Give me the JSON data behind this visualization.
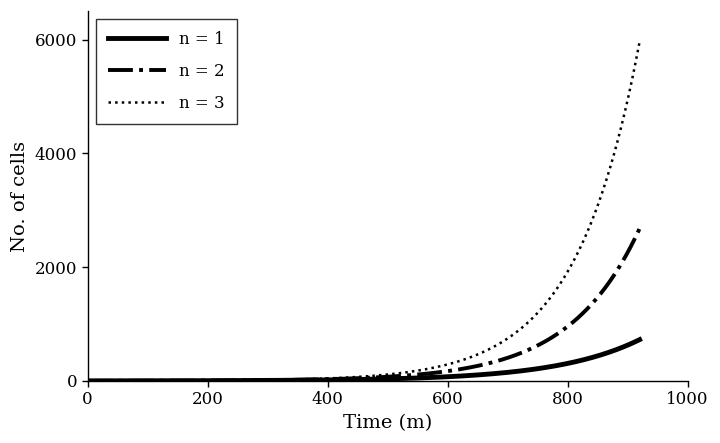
{
  "title": "",
  "xlabel": "Time (m)",
  "ylabel": "No. of cells",
  "xlim": [
    0,
    1000
  ],
  "ylim": [
    0,
    6500
  ],
  "xticks": [
    0,
    200,
    400,
    600,
    800,
    1000
  ],
  "yticks": [
    0,
    2000,
    4000,
    6000
  ],
  "series": [
    {
      "label": "n = 1",
      "linestyle": "solid",
      "linewidth": 3.5,
      "color": "#000000",
      "rate": 0.00716
    },
    {
      "label": "n = 2",
      "linestyle": "dashdot",
      "linewidth": 2.8,
      "color": "#000000",
      "rate": 0.00858
    },
    {
      "label": "n = 3",
      "linestyle": "dotted",
      "linewidth": 1.8,
      "color": "#000000",
      "rate": 0.00945
    }
  ],
  "legend_loc": "upper left",
  "legend_fontsize": 12,
  "axis_label_fontsize": 14,
  "tick_fontsize": 12,
  "figure_facecolor": "#ffffff",
  "axes_facecolor": "#ffffff"
}
